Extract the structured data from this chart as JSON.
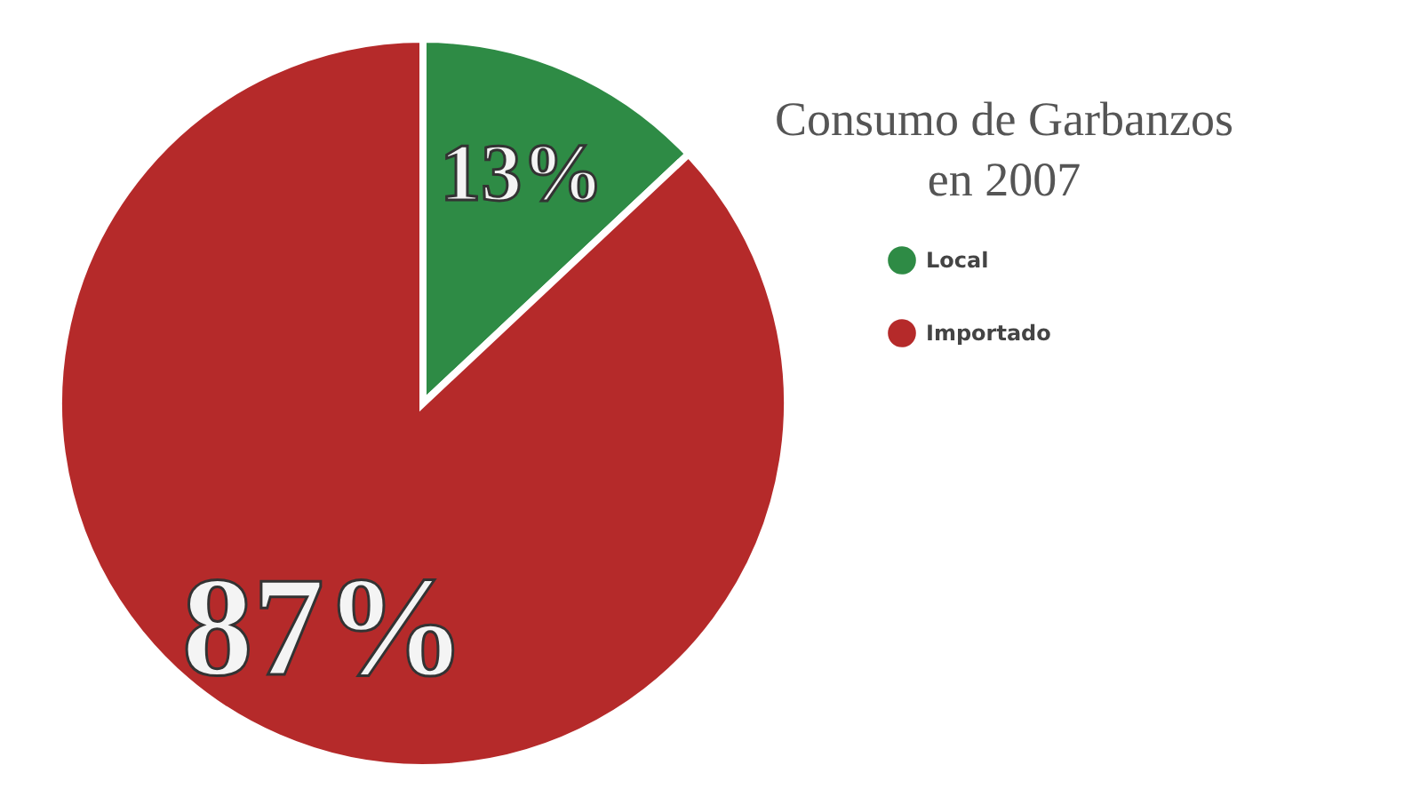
{
  "chart_data": {
    "type": "pie",
    "title": "Consumo de Garbanzos en 2007",
    "categories": [
      "Local",
      "Importado"
    ],
    "values": [
      13,
      87
    ],
    "colors": [
      "#2e8b45",
      "#b52a2a"
    ],
    "value_labels": [
      "13%",
      "87%"
    ],
    "legend": "right"
  }
}
